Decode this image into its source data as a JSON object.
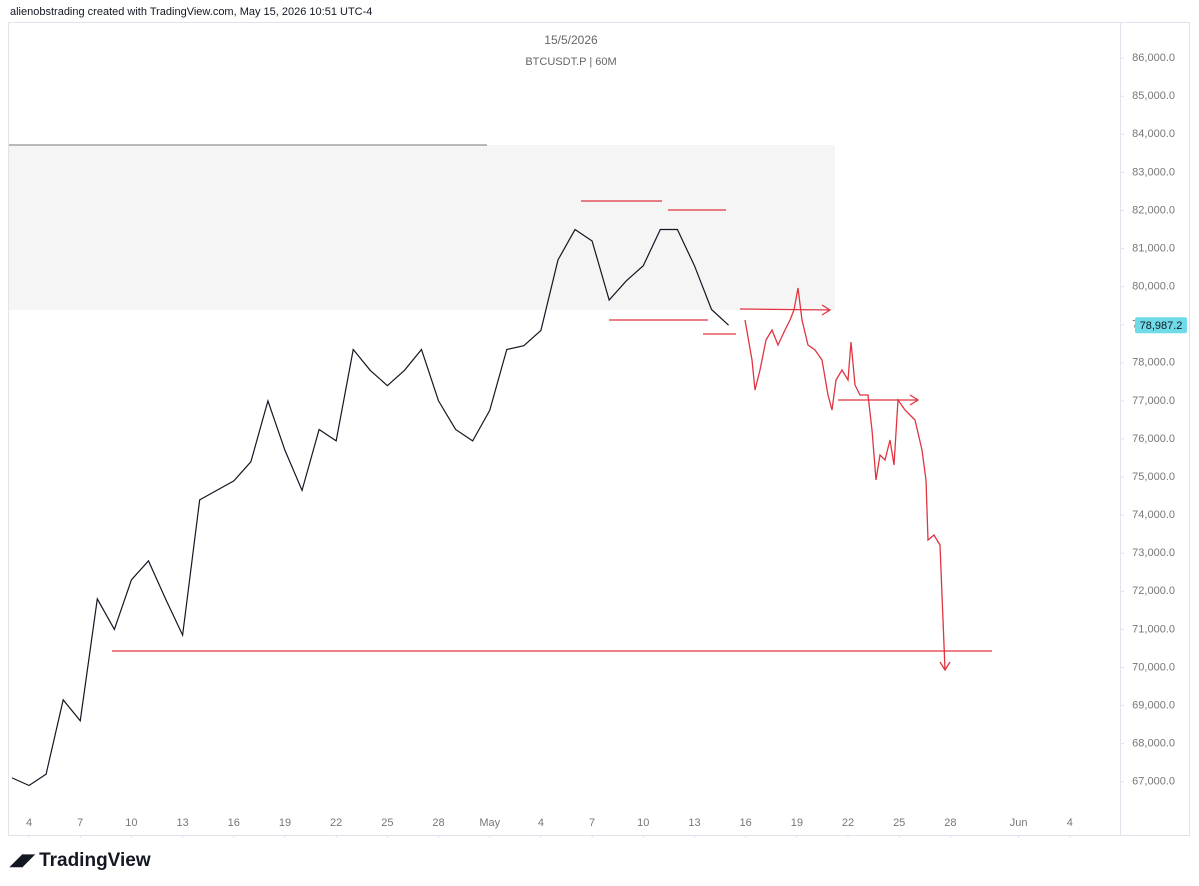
{
  "header": "alienobstrading created with TradingView.com, May 15, 2026 10:51 UTC-4",
  "footer": "TradingView",
  "chart_data": {
    "type": "line",
    "title": "15/5/2026",
    "subtitle": "BTCUSDT.P | 60M",
    "x": [
      "2026-04-03",
      "2026-04-04",
      "2026-04-05",
      "2026-04-06",
      "2026-04-07",
      "2026-04-08",
      "2026-04-09",
      "2026-04-10",
      "2026-04-11",
      "2026-04-12",
      "2026-04-13",
      "2026-04-14",
      "2026-04-15",
      "2026-04-16",
      "2026-04-17",
      "2026-04-18",
      "2026-04-19",
      "2026-04-20",
      "2026-04-21",
      "2026-04-22",
      "2026-04-23",
      "2026-04-24",
      "2026-04-25",
      "2026-04-26",
      "2026-04-27",
      "2026-04-28",
      "2026-04-29",
      "2026-04-30",
      "2026-05-01",
      "2026-05-02",
      "2026-05-03",
      "2026-05-04",
      "2026-05-05",
      "2026-05-06",
      "2026-05-07",
      "2026-05-08",
      "2026-05-09",
      "2026-05-10",
      "2026-05-11",
      "2026-05-12",
      "2026-05-13",
      "2026-05-14",
      "2026-05-15"
    ],
    "values": [
      67100,
      66900,
      67200,
      69150,
      68600,
      71800,
      71000,
      72300,
      72800,
      71800,
      70850,
      74400,
      74650,
      74900,
      75400,
      77000,
      75700,
      74650,
      76250,
      75950,
      78350,
      77800,
      77400,
      77800,
      78350,
      77000,
      76250,
      75950,
      76750,
      78350,
      78450,
      78850,
      80700,
      81500,
      81200,
      79650,
      80150,
      80550,
      81500,
      81500,
      80550,
      79400,
      78987.2
    ],
    "color": "#131722",
    "xlim": [
      "2026-04-03",
      "2026-06-07"
    ],
    "xticks": [
      {
        "value": "2026-04-04",
        "label": "4"
      },
      {
        "value": "2026-04-07",
        "label": "7"
      },
      {
        "value": "2026-04-10",
        "label": "10"
      },
      {
        "value": "2026-04-13",
        "label": "13"
      },
      {
        "value": "2026-04-16",
        "label": "16"
      },
      {
        "value": "2026-04-19",
        "label": "19"
      },
      {
        "value": "2026-04-22",
        "label": "22"
      },
      {
        "value": "2026-04-25",
        "label": "25"
      },
      {
        "value": "2026-04-28",
        "label": "28"
      },
      {
        "value": "2026-05-01",
        "label": "May"
      },
      {
        "value": "2026-05-04",
        "label": "4"
      },
      {
        "value": "2026-05-07",
        "label": "7"
      },
      {
        "value": "2026-05-10",
        "label": "10"
      },
      {
        "value": "2026-05-13",
        "label": "13"
      },
      {
        "value": "2026-05-16",
        "label": "16"
      },
      {
        "value": "2026-05-19",
        "label": "19"
      },
      {
        "value": "2026-05-22",
        "label": "22"
      },
      {
        "value": "2026-05-25",
        "label": "25"
      },
      {
        "value": "2026-05-28",
        "label": "28"
      },
      {
        "value": "2026-06-01",
        "label": "Jun"
      },
      {
        "value": "2026-06-04",
        "label": "4"
      }
    ],
    "ylim": [
      65600,
      86950
    ],
    "yticks": [
      {
        "value": 67000,
        "label": "67,000.0"
      },
      {
        "value": 68000,
        "label": "68,000.0"
      },
      {
        "value": 69000,
        "label": "69,000.0"
      },
      {
        "value": 70000,
        "label": "70,000.0"
      },
      {
        "value": 71000,
        "label": "71,000.0"
      },
      {
        "value": 72000,
        "label": "72,000.0"
      },
      {
        "value": 73000,
        "label": "73,000.0"
      },
      {
        "value": 74000,
        "label": "74,000.0"
      },
      {
        "value": 75000,
        "label": "75,000.0"
      },
      {
        "value": 76000,
        "label": "76,000.0"
      },
      {
        "value": 77000,
        "label": "77,000.0"
      },
      {
        "value": 78000,
        "label": "78,000.0"
      },
      {
        "value": 79000,
        "label": "79,000.0"
      },
      {
        "value": 80000,
        "label": "80,000.0"
      },
      {
        "value": 81000,
        "label": "81,000.0"
      },
      {
        "value": 82000,
        "label": "82,000.0"
      },
      {
        "value": 83000,
        "label": "83,000.0"
      },
      {
        "value": 84000,
        "label": "84,000.0"
      },
      {
        "value": 85000,
        "label": "85,000.0"
      },
      {
        "value": 86000,
        "label": "86,000.0"
      }
    ],
    "last_price": {
      "value": 78987.2,
      "label": "78,987.2",
      "color": "#6fdbe8"
    },
    "grid": false
  }
}
